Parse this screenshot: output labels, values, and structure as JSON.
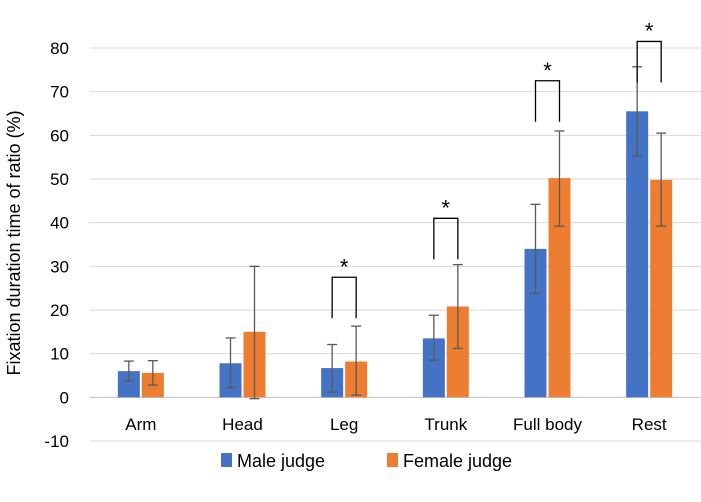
{
  "chart_data": {
    "type": "bar",
    "title": "",
    "xlabel": "",
    "ylabel": "Fixation duration time of ratio (%)",
    "ylim": [
      -10,
      80
    ],
    "yticks": [
      -10,
      0,
      10,
      20,
      30,
      40,
      50,
      60,
      70,
      80
    ],
    "grid": true,
    "legend_position": "bottom",
    "categories": [
      "Arm",
      "Head",
      "Leg",
      "Trunk",
      "Full body",
      "Rest"
    ],
    "series": [
      {
        "name": "Male judge",
        "color": "#4472C4",
        "values": [
          6,
          7.8,
          6.7,
          13.5,
          34,
          65.5
        ],
        "error_low": [
          3.8,
          2.2,
          1.2,
          8.5,
          23.8,
          55.3
        ],
        "error_high": [
          8.3,
          13.6,
          12.1,
          18.8,
          44.2,
          75.7
        ]
      },
      {
        "name": "Female judge",
        "color": "#ED7D31",
        "values": [
          5.6,
          15,
          8.2,
          20.8,
          50.2,
          49.8
        ],
        "error_low": [
          2.8,
          -0.3,
          0.5,
          11.2,
          39.2,
          39.2
        ],
        "error_high": [
          8.4,
          30,
          16.3,
          30.4,
          61,
          60.5
        ]
      }
    ],
    "significance": [
      {
        "category": "Leg",
        "label": "*",
        "bracket_level": 27.5
      },
      {
        "category": "Trunk",
        "label": "*",
        "bracket_level": 41
      },
      {
        "category": "Full body",
        "label": "*",
        "bracket_level": 72.5
      },
      {
        "category": "Rest",
        "label": "*",
        "bracket_level": 81.5
      }
    ]
  }
}
